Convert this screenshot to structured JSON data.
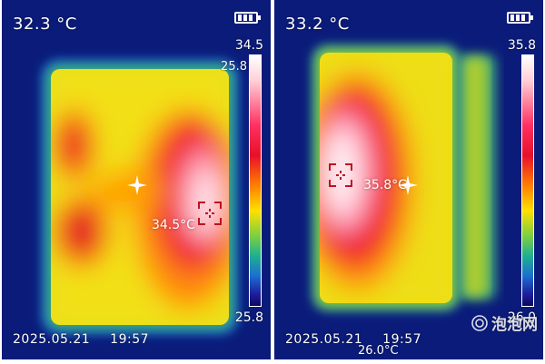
{
  "panels": [
    {
      "readout": "32.3 °C",
      "scale_max": "34.5",
      "scale_min": "25.8",
      "scale_extra": "25.8",
      "spot_label": "34.5°C",
      "date": "2025.05.21",
      "time": "19:57",
      "icons": [
        "battery-icon",
        "crosshair-icon",
        "reticle-icon"
      ]
    },
    {
      "readout": "33.2 °C",
      "scale_max": "35.8",
      "scale_min": "26.0",
      "spot_label": "35.8°C",
      "date": "2025.05.21",
      "time": "19:57",
      "bottom_extra": "26.0°C",
      "icons": [
        "battery-icon",
        "crosshair-icon",
        "reticle-icon"
      ]
    }
  ],
  "watermark": {
    "text": "泡泡网",
    "icon": "watermark-logo-icon"
  },
  "colors": {
    "background": "#0a1a78",
    "hot": "#ffffff",
    "warm": "#e8102a",
    "mid": "#ffe000",
    "cool": "#2020a0"
  }
}
